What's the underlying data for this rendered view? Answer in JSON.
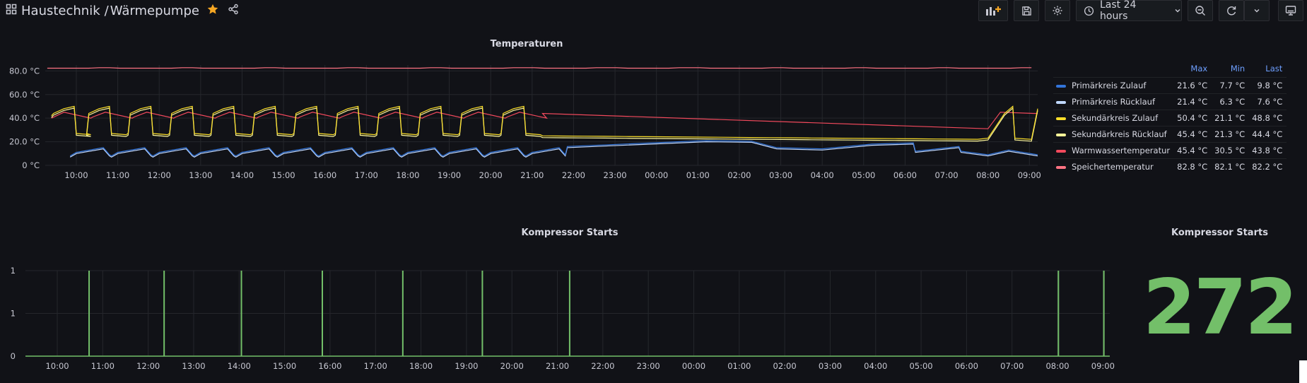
{
  "header": {
    "folder": "Haustechnik",
    "separator": "/",
    "dashboard": "Wärmepumpe",
    "time_range": "Last 24 hours",
    "accent_color": "#f5a623"
  },
  "icons": [
    "apps-icon",
    "star-icon",
    "share-icon",
    "add-panel-icon",
    "save-icon",
    "settings-icon",
    "clock-icon",
    "chevron-down-icon",
    "zoom-out-icon",
    "refresh-icon",
    "tv-mode-icon"
  ],
  "temp_panel": {
    "title": "Temperaturen",
    "legend_headers": {
      "max": "Max",
      "min": "Min",
      "last": "Last"
    },
    "legend": [
      {
        "name": "Primärkreis Zulauf",
        "color": "#3274d9",
        "max": "21.6 °C",
        "min": "7.7 °C",
        "last": "9.8 °C"
      },
      {
        "name": "Primärkreis Rücklauf",
        "color": "#c0d8ff",
        "max": "21.4 °C",
        "min": "6.3 °C",
        "last": "7.6 °C"
      },
      {
        "name": "Sekundärkreis Zulauf",
        "color": "#fade2a",
        "max": "50.4 °C",
        "min": "21.1 °C",
        "last": "48.8 °C"
      },
      {
        "name": "Sekundärkreis Rücklauf",
        "color": "#fff899",
        "max": "45.4 °C",
        "min": "21.3 °C",
        "last": "44.4 °C"
      },
      {
        "name": "Warmwassertemperatur",
        "color": "#f2495c",
        "max": "45.4 °C",
        "min": "30.5 °C",
        "last": "43.8 °C"
      },
      {
        "name": "Speichertemperatur",
        "color": "#ff7383",
        "max": "82.8 °C",
        "min": "82.1 °C",
        "last": "82.2 °C"
      }
    ]
  },
  "chart_data": [
    {
      "type": "line",
      "title": "Temperaturen",
      "x_ticks": [
        "10:00",
        "11:00",
        "12:00",
        "13:00",
        "14:00",
        "15:00",
        "16:00",
        "17:00",
        "18:00",
        "19:00",
        "20:00",
        "21:00",
        "22:00",
        "23:00",
        "00:00",
        "01:00",
        "02:00",
        "03:00",
        "04:00",
        "05:00",
        "06:00",
        "07:00",
        "08:00",
        "09:00"
      ],
      "y_ticks": [
        "0 °C",
        "20.0 °C",
        "40.0 °C",
        "60.0 °C",
        "80.0 °C"
      ],
      "ylim": [
        0,
        85
      ],
      "x_range_hours": [
        9.25,
        33.2
      ],
      "cycles_hours": [
        9.25,
        10.25,
        11.25,
        12.25,
        13.25,
        14.25,
        15.25,
        16.25,
        17.25,
        18.25,
        19.25,
        20.25
      ],
      "storage_level": 82.3,
      "hot_water_start": 44,
      "hot_water_end": 31,
      "legend_position": "right",
      "grid": true
    },
    {
      "type": "bar",
      "title": "Kompressor Starts",
      "x_ticks": [
        "10:00",
        "11:00",
        "12:00",
        "13:00",
        "14:00",
        "15:00",
        "16:00",
        "17:00",
        "18:00",
        "19:00",
        "20:00",
        "21:00",
        "22:00",
        "23:00",
        "00:00",
        "01:00",
        "02:00",
        "03:00",
        "04:00",
        "05:00",
        "06:00",
        "07:00",
        "08:00",
        "09:00"
      ],
      "y_ticks": [
        "0",
        "1",
        "1"
      ],
      "ylim": [
        0,
        1
      ],
      "x_range_hours": [
        9.3,
        33.15
      ],
      "start_times_hours": [
        10.7,
        12.35,
        14.05,
        15.83,
        17.6,
        19.35,
        21.27,
        32.02,
        33.02
      ],
      "values": [
        1,
        1,
        1,
        1,
        1,
        1,
        1,
        1,
        1
      ],
      "color": "#73bf69",
      "grid": true
    }
  ],
  "stat_panel": {
    "title": "Kompressor Starts",
    "value": "272",
    "color": "#73bf69"
  }
}
